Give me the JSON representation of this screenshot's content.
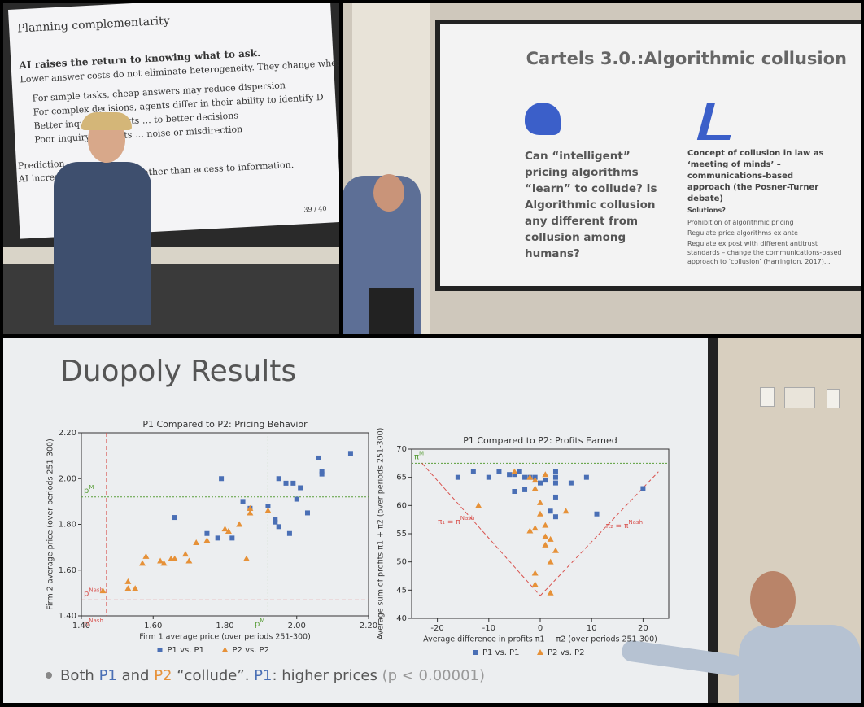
{
  "top_left_slide": {
    "title": "Planning complementarity",
    "lead": "AI raises the return to knowing what to ask.",
    "subtitle": "Lower answer costs do not eliminate heterogeneity. They change where it matters.",
    "bullets": [
      "For simple tasks, cheap answers may reduce dispersion",
      "For complex decisions, agents differ in their ability to identify D",
      "Better inquiry converts … to better decisions",
      "Poor inquiry converts … noise or misdirection"
    ],
    "prediction_title": "Prediction",
    "prediction_text": "AI increases dispersion … rather than access to information.",
    "page": "39 / 40"
  },
  "top_right_slide": {
    "title": "Cartels 3.0.:Algorithmic collusion",
    "question": "Can “intelligent” pricing algorithms “learn” to collude? Is Algorithmic collusion any different from collusion among humans?",
    "concept": "Concept of collusion  in law as ‘meeting of minds’ – communications-based approach (the Posner-Turner debate)",
    "solutions_title": "Solutions?",
    "solutions": [
      "Prohibition of algorithmic pricing",
      "Regulate price algorithms ex ante",
      "Regulate ex post with different antitrust standards – change the communications-based approach to ‘collusion’ (Harrington, 2017)..."
    ]
  },
  "bottom_slide": {
    "title": "Duopoly Results",
    "footer": [
      "Both ",
      "P1",
      " and ",
      "P2",
      " “collude”. ",
      "P1",
      ": higher prices ",
      "(p < 0.00001)"
    ]
  },
  "chart_data": [
    {
      "type": "scatter",
      "title": "P1 Compared to P2: Pricing Behavior",
      "x_label": "Firm 1 average price (over periods 251-300)",
      "y_label": "Firm 2 average price (over periods 251-300)",
      "xlim": [
        1.4,
        2.2
      ],
      "ylim": [
        1.4,
        2.2
      ],
      "xticks": [
        {
          "value": 1.4,
          "label": "1.40"
        },
        {
          "value": 1.6,
          "label": "1.60"
        },
        {
          "value": 1.8,
          "label": "1.80"
        },
        {
          "value": 2.0,
          "label": "2.00"
        },
        {
          "value": 2.2,
          "label": "2.20"
        }
      ],
      "yticks": [
        {
          "value": 1.4,
          "label": "1.40"
        },
        {
          "value": 1.6,
          "label": "1.60"
        },
        {
          "value": 1.8,
          "label": "1.80"
        },
        {
          "value": 2.0,
          "label": "2.00"
        },
        {
          "value": 2.2,
          "label": "2.20"
        }
      ],
      "series": [
        {
          "name": "P1 vs. P1",
          "color": "#4a6fb5",
          "marker": "square",
          "x": [
            2.15,
            2.06,
            2.07,
            2.07,
            1.79,
            1.99,
            2.01,
            1.97,
            2.0,
            1.85,
            1.87,
            1.92,
            1.94,
            1.94,
            1.95,
            2.03,
            1.98,
            1.75,
            1.78,
            1.82,
            1.66,
            1.95
          ],
          "values": [
            2.11,
            2.09,
            2.03,
            2.02,
            2.0,
            1.98,
            1.96,
            1.98,
            1.91,
            1.9,
            1.87,
            1.88,
            1.82,
            1.81,
            1.79,
            1.85,
            1.76,
            1.76,
            1.74,
            1.74,
            1.83,
            2.0
          ]
        },
        {
          "name": "P2 vs. P2",
          "color": "#e69138",
          "marker": "triangle",
          "x": [
            1.46,
            1.53,
            1.55,
            1.53,
            1.58,
            1.57,
            1.62,
            1.63,
            1.65,
            1.66,
            1.69,
            1.7,
            1.72,
            1.75,
            1.8,
            1.81,
            1.84,
            1.87,
            1.87,
            1.92,
            1.86
          ],
          "values": [
            1.51,
            1.52,
            1.52,
            1.55,
            1.66,
            1.63,
            1.64,
            1.63,
            1.65,
            1.65,
            1.67,
            1.64,
            1.72,
            1.73,
            1.78,
            1.77,
            1.8,
            1.85,
            1.87,
            1.86,
            1.65
          ]
        }
      ],
      "ref_lines": [
        {
          "orientation": "vertical",
          "value": 1.47,
          "color": "#d9534f",
          "style": "dashed",
          "label": "p",
          "label_sup": "Nash"
        },
        {
          "orientation": "horizontal",
          "value": 1.47,
          "color": "#d9534f",
          "style": "dashed",
          "label": "p",
          "label_sup": "Nash"
        },
        {
          "orientation": "vertical",
          "value": 1.92,
          "color": "#5a9e3a",
          "style": "dotted",
          "label": "p",
          "label_sup": "M"
        },
        {
          "orientation": "horizontal",
          "value": 1.92,
          "color": "#5a9e3a",
          "style": "dotted",
          "label": "p",
          "label_sup": "M"
        }
      ]
    },
    {
      "type": "scatter",
      "title": "P1 Compared to P2: Profits Earned",
      "x_label": "Average difference in profits π1 − π2 (over periods 251-300)",
      "y_label": "Average sum of profits π1 + π2 (over periods 251-300)",
      "xlim": [
        -25,
        25
      ],
      "ylim": [
        40,
        70
      ],
      "xticks": [
        -20,
        -10,
        0,
        10,
        20
      ],
      "yticks": [
        40,
        45,
        50,
        55,
        60,
        65,
        70
      ],
      "series": [
        {
          "name": "P1 vs. P1",
          "color": "#4a6fb5",
          "marker": "square",
          "x": [
            -16,
            -13,
            -10,
            -8,
            -6,
            -5,
            -3,
            -2,
            -1,
            0,
            1,
            3,
            3,
            3,
            3,
            2,
            3,
            6,
            9,
            11,
            20,
            -5,
            -3,
            -4
          ],
          "values": [
            65,
            66,
            65,
            66,
            65.5,
            65.5,
            65,
            65,
            65,
            64,
            64.5,
            66,
            65,
            64,
            61.5,
            59,
            58,
            64,
            65,
            58.5,
            63,
            62.5,
            62.8,
            66
          ]
        },
        {
          "name": "P2 vs. P2",
          "color": "#e69138",
          "marker": "triangle",
          "x": [
            -12,
            -5,
            -2,
            -1,
            1,
            -1,
            0,
            0,
            -2,
            -1,
            1,
            1,
            1,
            2,
            3,
            2,
            -1,
            -1,
            2,
            5
          ],
          "values": [
            60,
            66,
            65,
            64.5,
            65.5,
            63,
            60.5,
            58.5,
            55.5,
            56,
            56.5,
            54.5,
            53,
            54,
            52,
            50,
            48,
            46,
            44.5,
            59
          ]
        }
      ],
      "ref_lines": [
        {
          "orientation": "horizontal",
          "value": 67.5,
          "color": "#5a9e3a",
          "style": "dotted",
          "label": "π",
          "label_sup": "M"
        }
      ],
      "v_lines": [
        {
          "x1": -23,
          "y1": 67.5,
          "x2": 0,
          "y2": 44,
          "label": "π₁ = π",
          "label_sup": "Nash"
        },
        {
          "x1": 0,
          "y1": 44,
          "x2": 23,
          "y2": 66,
          "label": "π₂ = π",
          "label_sup": "Nash"
        }
      ]
    }
  ]
}
